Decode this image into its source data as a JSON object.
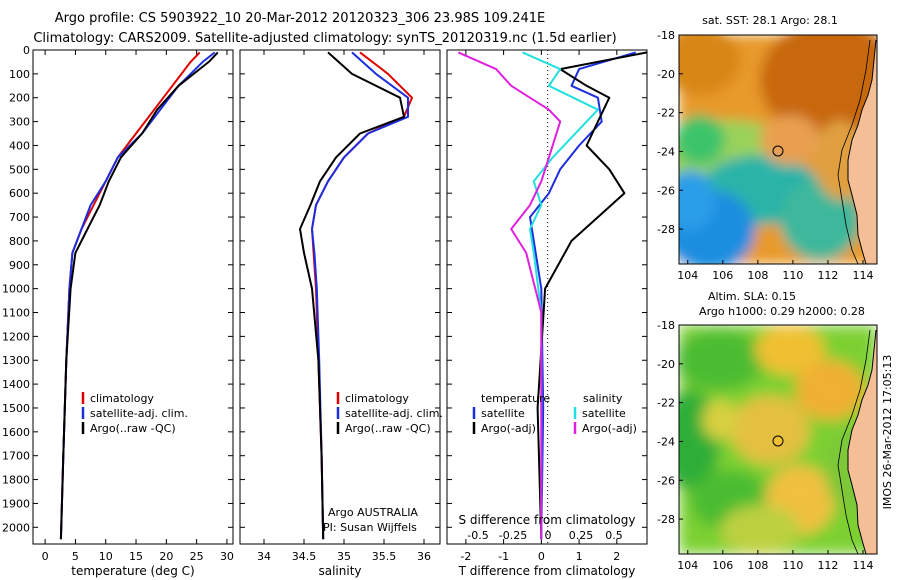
{
  "title_line1": "Argo profile: CS 5903922_10 20-Mar-2012 20120323_306 23.98S 109.241E",
  "title_line2": "Climatology: CARS2009. Satellite-adjusted climatology: synTS_20120319.nc (1.5d earlier)",
  "side_credit": "IMOS 26-Mar-2012 17:05:13",
  "colors": {
    "clim": "#e00000",
    "sat": "#1c2ee0",
    "argo": "#000000",
    "sat_s": "#22e0e0",
    "argo_s": "#e020e0"
  },
  "chart_data": [
    {
      "type": "line",
      "xlabel": "temperature (deg C)",
      "xlim": [
        -2,
        31
      ],
      "xticks": [
        0,
        5,
        10,
        15,
        20,
        25,
        30
      ],
      "ylim": [
        0,
        2070
      ],
      "yticks": [
        0,
        100,
        200,
        300,
        400,
        500,
        600,
        700,
        800,
        900,
        1000,
        1100,
        1200,
        1300,
        1400,
        1500,
        1600,
        1700,
        1800,
        1900,
        2000
      ],
      "legend": [
        "climatology",
        "satellite-adj. clim.",
        "Argo(..raw -QC)"
      ],
      "series": [
        {
          "name": "climatology",
          "color": "clim",
          "x": [
            25.5,
            24,
            21,
            18,
            15,
            12,
            10,
            8,
            6,
            4.5,
            4,
            3.5,
            3,
            2.6
          ],
          "y": [
            10,
            50,
            150,
            250,
            350,
            450,
            550,
            650,
            750,
            850,
            1000,
            1300,
            1700,
            2050
          ]
        },
        {
          "name": "satellite-adj. clim.",
          "color": "sat",
          "x": [
            28,
            26,
            22,
            19,
            16,
            12,
            10,
            7.5,
            6,
            4.5,
            4,
            3.5,
            3,
            2.6
          ],
          "y": [
            10,
            50,
            150,
            250,
            350,
            450,
            550,
            650,
            750,
            850,
            1000,
            1300,
            1700,
            2050
          ]
        },
        {
          "name": "Argo(..raw -QC)",
          "color": "argo",
          "x": [
            28.5,
            27,
            22,
            18.5,
            16,
            12.5,
            10.5,
            9,
            7,
            5,
            4.2,
            3.5,
            3,
            2.6
          ],
          "y": [
            10,
            50,
            150,
            250,
            350,
            450,
            550,
            650,
            750,
            850,
            1000,
            1300,
            1700,
            2050
          ]
        }
      ]
    },
    {
      "type": "line",
      "xlabel": "salinity",
      "xlim": [
        33.7,
        36.2
      ],
      "xticks": [
        34,
        34.5,
        35,
        35.5,
        36
      ],
      "ylim": [
        0,
        2070
      ],
      "legend": [
        "climatology",
        "satellite-adj. clim.",
        "Argo(..raw -QC)"
      ],
      "annotation": [
        "Argo AUSTRALIA",
        "PI: Susan Wijffels"
      ],
      "series": [
        {
          "name": "climatology",
          "color": "clim",
          "x": [
            35.2,
            35.55,
            35.85,
            35.75,
            35.3,
            35,
            34.8,
            34.65,
            34.6,
            34.62,
            34.65,
            34.68,
            34.72,
            34.74
          ],
          "y": [
            10,
            100,
            200,
            280,
            350,
            450,
            550,
            650,
            750,
            850,
            1000,
            1300,
            1700,
            2050
          ]
        },
        {
          "name": "satellite-adj. clim.",
          "color": "sat",
          "x": [
            35.1,
            35.4,
            35.8,
            35.8,
            35.3,
            35,
            34.8,
            34.65,
            34.6,
            34.63,
            34.66,
            34.69,
            34.72,
            34.74
          ],
          "y": [
            10,
            100,
            200,
            280,
            350,
            450,
            550,
            650,
            750,
            850,
            1000,
            1300,
            1700,
            2050
          ]
        },
        {
          "name": "Argo(..raw -QC)",
          "color": "argo",
          "x": [
            34.8,
            35.1,
            35.7,
            35.75,
            35.2,
            34.9,
            34.7,
            34.58,
            34.45,
            34.5,
            34.6,
            34.68,
            34.72,
            34.74
          ],
          "y": [
            10,
            100,
            200,
            280,
            350,
            450,
            550,
            650,
            750,
            850,
            1000,
            1300,
            1700,
            2050
          ]
        }
      ]
    },
    {
      "type": "line",
      "xlabel": "T difference from climatology",
      "xlim": [
        -2.5,
        2.8
      ],
      "xticks": [
        -2,
        -1,
        0,
        1,
        2
      ],
      "top_xlabel": "S difference from climatology",
      "top_xticks": [
        "-0.5",
        "-0.25",
        "0",
        "0.25",
        "0.5"
      ],
      "legend_titles": [
        "temperature",
        "salinity"
      ],
      "legend": [
        "satellite",
        "Argo(-adj)",
        "satellite",
        "Argo(-adj)"
      ],
      "series": [
        {
          "name": "T satellite",
          "color": "sat",
          "x": [
            2.5,
            1,
            0.8,
            1.5,
            1.6,
            1,
            0.5,
            0.2,
            -0.3,
            -0.2,
            0,
            0.05,
            0
          ],
          "y": [
            10,
            80,
            150,
            200,
            300,
            400,
            500,
            600,
            700,
            800,
            1000,
            1500,
            2050
          ]
        },
        {
          "name": "T Argo(-adj)",
          "color": "argo",
          "x": [
            2.8,
            0.5,
            1.2,
            1.8,
            1.5,
            1.2,
            1.8,
            2.2,
            1.5,
            0.8,
            0.1,
            -0.1,
            0
          ],
          "y": [
            10,
            80,
            150,
            200,
            300,
            400,
            500,
            600,
            700,
            800,
            1000,
            1500,
            2050
          ]
        },
        {
          "name": "S satellite",
          "color": "sat_s",
          "x": [
            -0.5,
            0.5,
            0.2,
            1.5,
            1.2,
            0.3,
            -0.2,
            0,
            -0.3,
            -0.2,
            0,
            0
          ],
          "y": [
            10,
            80,
            150,
            250,
            300,
            450,
            550,
            650,
            750,
            850,
            1100,
            2050
          ]
        },
        {
          "name": "S Argo(-adj)",
          "color": "argo_s",
          "x": [
            -2.2,
            -1.2,
            -0.8,
            0.2,
            0.5,
            0.2,
            0,
            -0.3,
            -0.8,
            -0.4,
            0,
            0
          ],
          "y": [
            10,
            80,
            150,
            250,
            300,
            450,
            550,
            650,
            750,
            850,
            1100,
            2050
          ]
        }
      ]
    },
    {
      "type": "heatmap",
      "title": "sat. SST: 28.1  Argo: 28.1",
      "xticks": [
        104,
        106,
        108,
        110,
        112,
        114
      ],
      "yticks": [
        -18,
        -20,
        -22,
        -24,
        -26,
        -28
      ],
      "xlim": [
        103.5,
        114.8
      ],
      "ylim": [
        -29.8,
        -18
      ]
    },
    {
      "type": "heatmap",
      "title_line1": "Altim. SLA: 0.15",
      "title_line2": "Argo h1000: 0.29 h2000: 0.28",
      "xticks": [
        104,
        106,
        108,
        110,
        112,
        114
      ],
      "yticks": [
        -18,
        -20,
        -22,
        -24,
        -26,
        -28
      ],
      "xlim": [
        103.5,
        114.8
      ],
      "ylim": [
        -29.8,
        -18
      ]
    }
  ]
}
